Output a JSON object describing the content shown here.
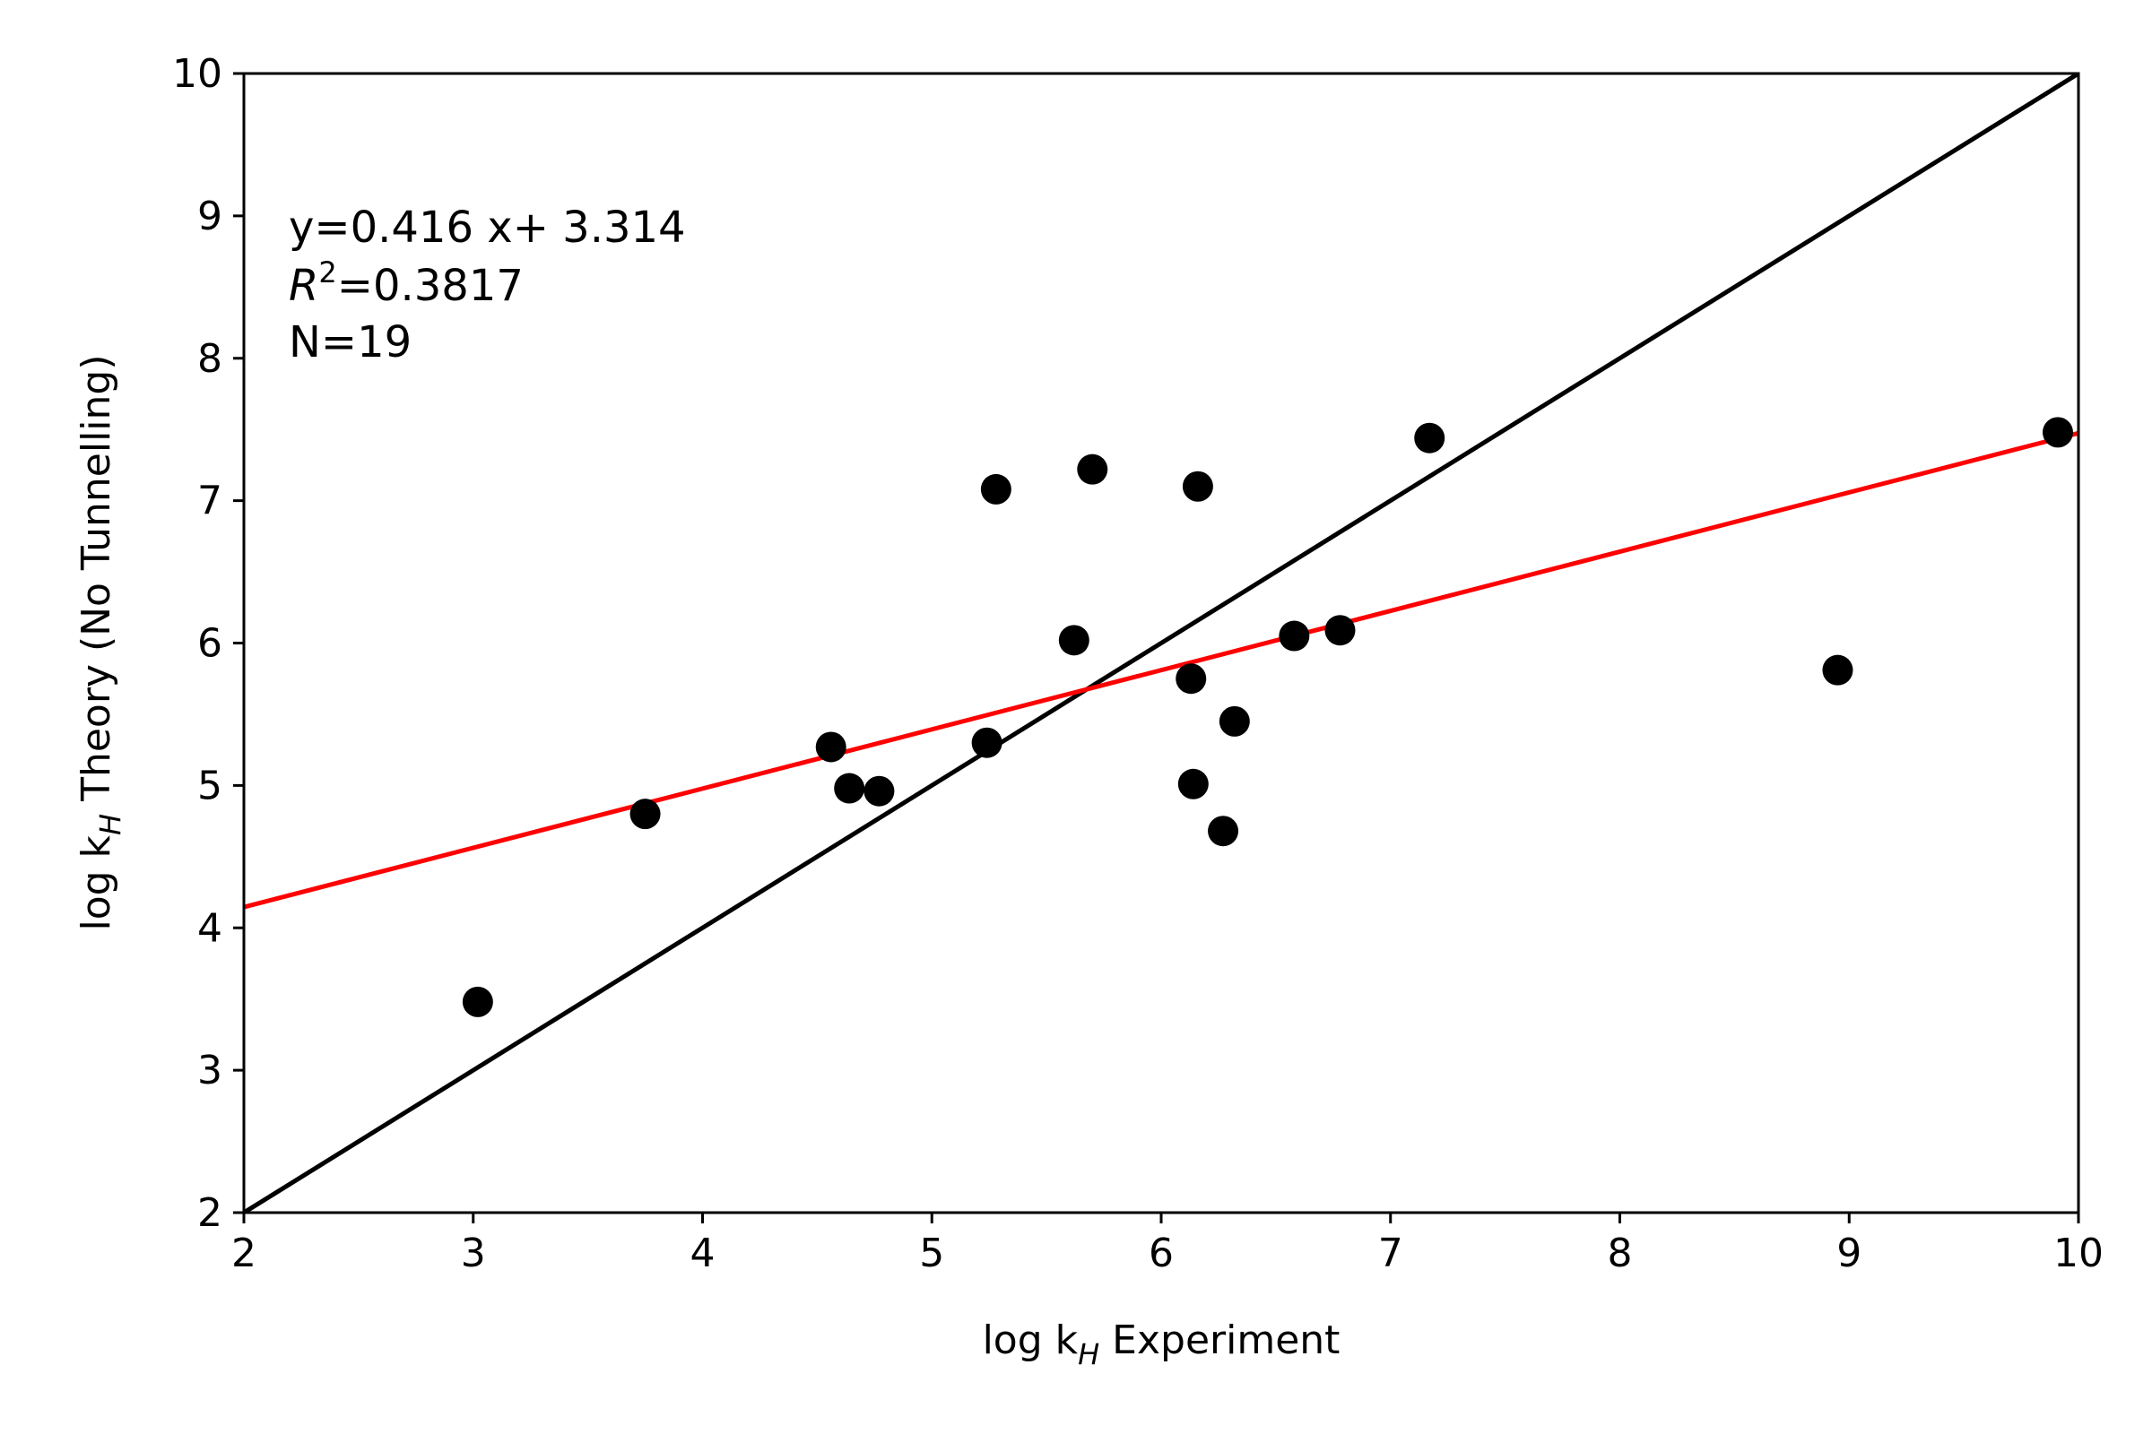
{
  "chart_data": {
    "type": "scatter",
    "xlabel": {
      "main": "log k",
      "sub": "H",
      "rest": " Experiment"
    },
    "ylabel": {
      "main": "log k",
      "sub": "H",
      "rest": " Theory (No Tunnelling)"
    },
    "xlim": [
      2,
      10
    ],
    "ylim": [
      2,
      10
    ],
    "xticks": [
      2,
      3,
      4,
      5,
      6,
      7,
      8,
      9,
      10
    ],
    "yticks": [
      2,
      3,
      4,
      5,
      6,
      7,
      8,
      9,
      10
    ],
    "grid": false,
    "annotations": {
      "equation": "y=0.416 x+ 3.314",
      "r2_symbol": "R",
      "r2_power": "2",
      "r2_value": "=0.3817",
      "n": "N=19"
    },
    "points": {
      "color": "#000000",
      "x": [
        3.02,
        3.75,
        4.56,
        4.64,
        4.77,
        5.24,
        5.28,
        5.62,
        5.7,
        6.13,
        6.14,
        6.16,
        6.27,
        6.32,
        6.58,
        6.78,
        7.17,
        8.95,
        9.91
      ],
      "y": [
        3.48,
        4.8,
        5.27,
        4.98,
        4.96,
        5.3,
        7.08,
        6.02,
        7.22,
        5.75,
        5.01,
        7.1,
        4.68,
        5.45,
        6.05,
        6.09,
        7.44,
        5.81,
        7.48
      ]
    },
    "identity_line": {
      "color": "#000000",
      "x": [
        2,
        10
      ],
      "y": [
        2,
        10
      ]
    },
    "fit_line": {
      "color": "#ff0000",
      "slope": 0.416,
      "intercept": 3.314,
      "x": [
        2,
        10
      ]
    }
  }
}
